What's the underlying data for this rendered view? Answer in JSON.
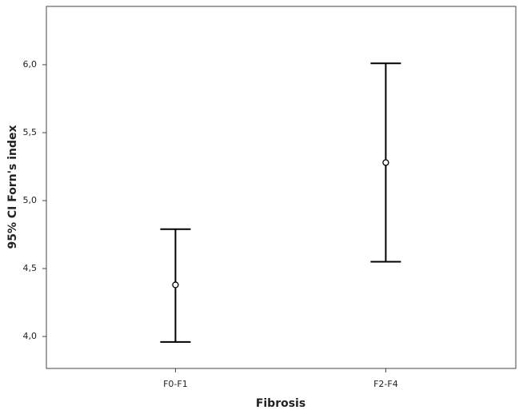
{
  "chart_data": {
    "type": "errorbar",
    "x_label": "Fibrosis",
    "y_label": "95% CI Forn's index",
    "categories": [
      "F0-F1",
      "F2-F4"
    ],
    "series": [
      {
        "color": "#000000",
        "values": [
          4.38,
          5.28
        ],
        "lower": [
          3.96,
          4.55
        ],
        "upper": [
          4.79,
          6.01
        ]
      }
    ],
    "ylim": [
      3.765,
      6.429
    ],
    "yticks": [
      {
        "value": 4,
        "label": "4,0"
      },
      {
        "value": 4.5,
        "label": "4,5"
      },
      {
        "value": 5,
        "label": "5,0"
      },
      {
        "value": 5.5,
        "label": "5,5"
      },
      {
        "value": 6,
        "label": "6,0"
      }
    ]
  }
}
